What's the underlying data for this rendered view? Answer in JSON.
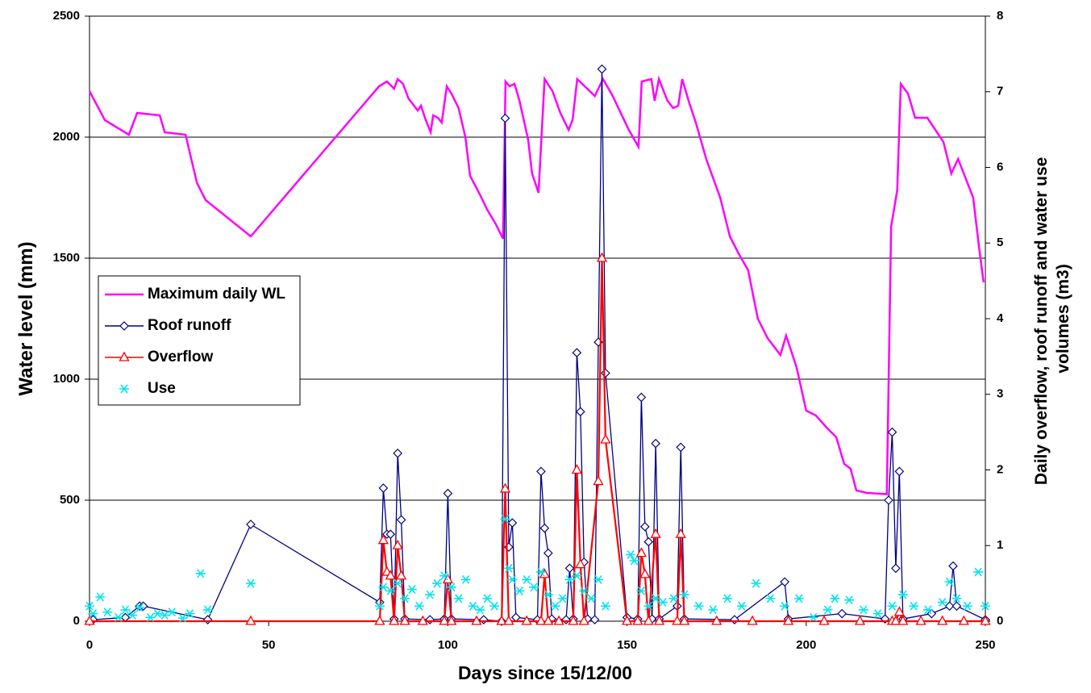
{
  "chart_data": {
    "type": "line",
    "xlabel": "Days since 15/12/00",
    "ylabel": "Water level (mm)",
    "y2label": [
      "Daily overflow, roof runoff and water use",
      "volumes (m3)"
    ],
    "xlim": [
      0,
      250
    ],
    "xticks": [
      0,
      50,
      100,
      150,
      200,
      250
    ],
    "ylim": [
      0,
      2500
    ],
    "yticks": [
      0,
      500,
      1000,
      1500,
      2000,
      2500
    ],
    "y2lim": [
      0,
      8
    ],
    "y2ticks": [
      0,
      1,
      2,
      3,
      4,
      5,
      6,
      7,
      8
    ],
    "grid": true,
    "legend": "left",
    "series": [
      {
        "name": "Maximum daily WL",
        "color": "#ff00ff",
        "marker": "none",
        "line": true,
        "x": [
          0,
          4.3,
          11,
          13.3,
          19.6,
          21,
          26.8,
          30,
          32.4,
          45,
          80.8,
          83,
          85,
          86,
          87.5,
          89,
          91.6,
          92.5,
          93.6,
          95.2,
          95.9,
          97.2,
          98.3,
          99.7,
          101,
          103,
          104.9,
          106.2,
          108.7,
          111,
          113.4,
          115.4,
          116.1,
          117.2,
          118.6,
          120,
          122.4,
          123.5,
          125.3,
          127,
          129.2,
          131.4,
          133.7,
          134.8,
          136.1,
          138.2,
          141,
          143.3,
          146,
          150.5,
          153.2,
          154.1,
          156.8,
          157.7,
          158.9,
          161.3,
          162.9,
          164.3,
          165.4,
          167.4,
          169.2,
          172.1,
          176,
          178.7,
          181.1,
          183.8,
          186.5,
          189.2,
          192.8,
          194.4,
          197.3,
          200,
          202.7,
          205.7,
          208.4,
          210.6,
          212.4,
          214,
          216.9,
          222.5,
          223.7,
          225.4,
          226.4,
          228.4,
          230.4,
          233.8,
          238.3,
          240.5,
          242.4,
          246.6,
          248.2,
          249.5
        ],
        "values": [
          2190,
          2070,
          2010,
          2100,
          2090,
          2020,
          2010,
          1810,
          1740,
          1590,
          2210,
          2230,
          2200,
          2240,
          2220,
          2160,
          2110,
          2130,
          2080,
          2020,
          2090,
          2080,
          2060,
          2210,
          2180,
          2120,
          2000,
          1840,
          1770,
          1700,
          1640,
          1580,
          2230,
          2210,
          2220,
          2150,
          1990,
          1850,
          1770,
          2240,
          2190,
          2100,
          2030,
          2070,
          2240,
          2210,
          2170,
          2240,
          2170,
          2030,
          1960,
          2230,
          2240,
          2150,
          2240,
          2150,
          2120,
          2130,
          2240,
          2140,
          2060,
          1910,
          1750,
          1590,
          1520,
          1450,
          1250,
          1170,
          1100,
          1180,
          1050,
          870,
          850,
          800,
          760,
          650,
          630,
          540,
          530,
          525,
          1630,
          1780,
          2220,
          2180,
          2080,
          2080,
          1980,
          1850,
          1910,
          1750,
          1550,
          1400
        ]
      },
      {
        "name": "Roof runoff",
        "color": "#000080",
        "marker": "diamond",
        "line": true,
        "axis": "y2",
        "x": [
          1,
          10,
          14,
          15,
          33,
          45,
          81,
          82,
          83,
          84,
          85,
          86,
          87,
          88,
          95,
          99,
          100,
          101,
          110,
          115,
          116,
          117,
          118,
          119,
          125,
          126,
          127,
          128,
          129,
          133,
          134,
          135,
          136,
          137,
          138,
          139,
          141,
          142,
          143,
          144,
          150,
          153,
          154,
          155,
          156,
          157,
          158,
          159,
          164,
          165,
          166,
          180,
          194,
          195,
          210,
          222,
          223,
          224,
          225,
          226,
          227,
          235,
          240,
          241,
          242,
          250
        ],
        "values": [
          0.02,
          0.05,
          0.2,
          0.2,
          0.02,
          1.28,
          0.25,
          1.76,
          1.15,
          1.15,
          0.03,
          2.22,
          1.34,
          0.03,
          0.02,
          0.03,
          1.69,
          0.03,
          0.02,
          0,
          6.65,
          0.98,
          1.3,
          0.05,
          0.02,
          1.98,
          1.23,
          0.9,
          0.03,
          0.02,
          0.7,
          0.03,
          3.55,
          2.77,
          0.78,
          0.03,
          0.02,
          3.69,
          7.3,
          3.28,
          0.05,
          0.03,
          2.96,
          1.25,
          1.05,
          0.03,
          2.35,
          0.03,
          0.2,
          2.3,
          0.03,
          0.02,
          0.52,
          0.03,
          0.1,
          0.03,
          1.6,
          2.5,
          0.7,
          1.98,
          0.03,
          0.1,
          0.2,
          0.73,
          0.2,
          0.02
        ]
      },
      {
        "name": "Overflow",
        "color": "#ff0000",
        "marker": "triangle",
        "line": true,
        "axis": "y2",
        "x": [
          0,
          45,
          81,
          82,
          83,
          84,
          85,
          86,
          87,
          88,
          93,
          99,
          100,
          101,
          108,
          115,
          116,
          117,
          122,
          126,
          127,
          128,
          131,
          135,
          136,
          137,
          138,
          142,
          143,
          144,
          150,
          153,
          154,
          155,
          156,
          158,
          159,
          164,
          165,
          166,
          175,
          185,
          195,
          205,
          215,
          224,
          225,
          226,
          227,
          232,
          238,
          244,
          250
        ],
        "values": [
          0,
          0,
          0,
          1.07,
          0.65,
          0.6,
          0,
          1.0,
          0.6,
          0,
          0,
          0,
          0.55,
          0,
          0,
          0,
          1.75,
          0,
          0,
          0,
          0.62,
          0,
          0,
          0,
          2.0,
          0.75,
          0,
          1.85,
          4.8,
          2.4,
          0,
          0,
          0.9,
          0.62,
          0,
          1.15,
          0,
          0,
          1.15,
          0,
          0,
          0,
          0,
          0,
          0,
          0,
          0,
          0.12,
          0,
          0,
          0,
          0,
          0
        ]
      },
      {
        "name": "Use",
        "color": "#00e5ee",
        "marker": "asterisk",
        "line": false,
        "axis": "y2",
        "x": [
          0,
          1,
          3,
          5,
          8,
          10,
          12,
          14,
          17,
          19,
          21,
          23,
          26,
          28,
          31,
          33,
          45,
          81,
          82,
          84,
          86,
          88,
          90,
          92,
          95,
          97,
          99,
          101,
          103,
          105,
          107,
          109,
          111,
          113,
          116,
          117,
          118,
          120,
          122,
          124,
          126,
          128,
          130,
          132,
          134,
          136,
          138,
          140,
          142,
          144,
          151,
          152,
          154,
          156,
          158,
          160,
          163,
          166,
          170,
          174,
          178,
          182,
          186,
          190,
          194,
          198,
          202,
          206,
          208,
          212,
          216,
          220,
          224,
          227,
          230,
          234,
          238,
          240,
          242,
          245,
          248,
          250
        ],
        "values": [
          0.2,
          0.1,
          0.32,
          0.12,
          0.05,
          0.15,
          0.08,
          0.18,
          0.05,
          0.1,
          0.08,
          0.12,
          0.04,
          0.1,
          0.63,
          0.15,
          0.5,
          0.2,
          0.45,
          0.4,
          0.5,
          0.3,
          0.42,
          0.2,
          0.35,
          0.5,
          0.6,
          0.45,
          0.3,
          0.55,
          0.2,
          0.15,
          0.3,
          0.2,
          1.35,
          0.7,
          0.55,
          0.4,
          0.55,
          0.45,
          0.65,
          0.35,
          0.2,
          0.3,
          0.55,
          0.6,
          0.4,
          0.3,
          0.55,
          0.2,
          0.88,
          0.8,
          0.4,
          0.2,
          0.3,
          0.25,
          0.3,
          0.35,
          0.2,
          0.15,
          0.3,
          0.2,
          0.5,
          0.3,
          0.2,
          0.3,
          0.05,
          0.15,
          0.3,
          0.28,
          0.15,
          0.1,
          0.2,
          0.35,
          0.2,
          0.15,
          0.25,
          0.52,
          0.3,
          0.2,
          0.65,
          0.2
        ]
      }
    ]
  }
}
